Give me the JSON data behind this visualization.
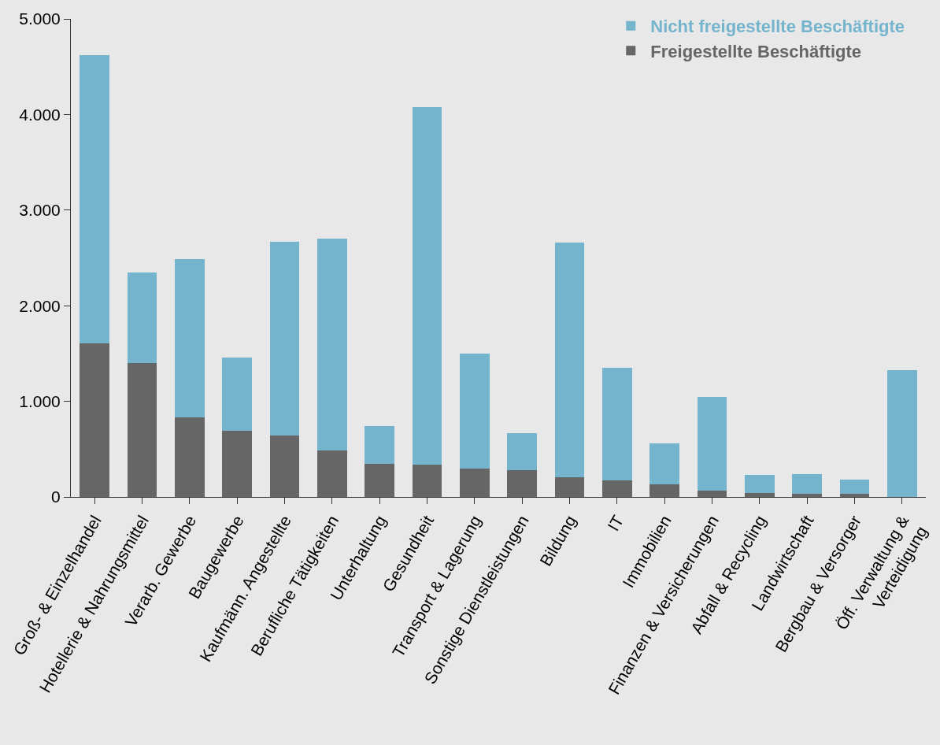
{
  "chart_data": {
    "type": "bar",
    "stacked": true,
    "categories": [
      "Groß- & Einzelhandel",
      "Hotellerie & Nahrungsmittel",
      "Verarb. Gewerbe",
      "Baugewerbe",
      "Kaufmänn. Angestellte",
      "Berufliche Tätigkeiten",
      "Unterhaltung",
      "Gesundheit",
      "Transport & Lagerung",
      "Sonstige Dienstleistungen",
      "Bildung",
      "IT",
      "Immobilien",
      "Finanzen & Versicherungen",
      "Abfall & Recycling",
      "Landwirtschaft",
      "Bergbau & Versorger",
      "Öff. Verwaltung &\nVerteidigung"
    ],
    "series": [
      {
        "name": "Freigestellte Beschäftigte",
        "color": "#666666",
        "values": [
          1610,
          1400,
          830,
          690,
          640,
          490,
          350,
          340,
          300,
          280,
          210,
          170,
          130,
          70,
          40,
          30,
          30,
          0
        ]
      },
      {
        "name": "Nicht freigestellte Beschäftigte",
        "color": "#74b4cc",
        "values": [
          3010,
          950,
          1660,
          770,
          2030,
          2210,
          390,
          3740,
          1200,
          390,
          2450,
          1180,
          430,
          980,
          190,
          210,
          150,
          1330
        ]
      }
    ],
    "ylim": [
      0,
      5000
    ],
    "yticks": [
      {
        "value": 0,
        "label": "0"
      },
      {
        "value": 1000,
        "label": "1.000"
      },
      {
        "value": 2000,
        "label": "2.000"
      },
      {
        "value": 3000,
        "label": "3.000"
      },
      {
        "value": 4000,
        "label": "4.000"
      },
      {
        "value": 5000,
        "label": "5.000"
      }
    ],
    "grid": false,
    "legend": "top right"
  }
}
